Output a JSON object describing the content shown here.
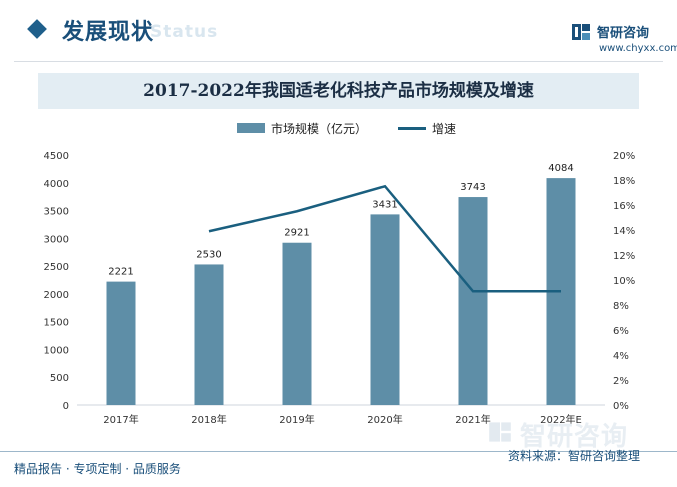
{
  "header": {
    "title": "发展现状",
    "ghost": "Status",
    "brand_name": "智研咨询",
    "brand_url": "www.chyxx.com"
  },
  "chart_data": {
    "type": "bar",
    "title": "2017-2022年我国适老化科技产品市场规模及增速",
    "categories": [
      "2017年",
      "2018年",
      "2019年",
      "2020年",
      "2021年",
      "2022年E"
    ],
    "series": [
      {
        "name": "市场规模（亿元）",
        "type": "bar",
        "axis": "left",
        "values": [
          2221,
          2530,
          2921,
          3431,
          3743,
          4084
        ],
        "color": "#5e8ea7"
      },
      {
        "name": "增速",
        "type": "line",
        "axis": "right",
        "values": [
          null,
          13.9,
          15.5,
          17.5,
          9.1,
          9.1
        ],
        "unit": "%",
        "color": "#1a5f7f"
      }
    ],
    "data_labels": [
      "2221",
      "2530",
      "2921",
      "3431",
      "3743",
      "4084"
    ],
    "y_left": {
      "min": 0,
      "max": 4500,
      "step": 500,
      "ticks": [
        "0",
        "500",
        "1000",
        "1500",
        "2000",
        "2500",
        "3000",
        "3500",
        "4000",
        "4500"
      ]
    },
    "y_right": {
      "min": 0,
      "max": 20,
      "step": 2,
      "ticks": [
        "0%",
        "2%",
        "4%",
        "6%",
        "8%",
        "10%",
        "12%",
        "14%",
        "16%",
        "18%",
        "20%"
      ]
    },
    "legend_position": "top-center",
    "grid": false
  },
  "footer": {
    "left": "精品报告 · 专项定制 · 品质服务",
    "source": "资料来源：智研咨询整理",
    "watermark": "智研咨询"
  }
}
